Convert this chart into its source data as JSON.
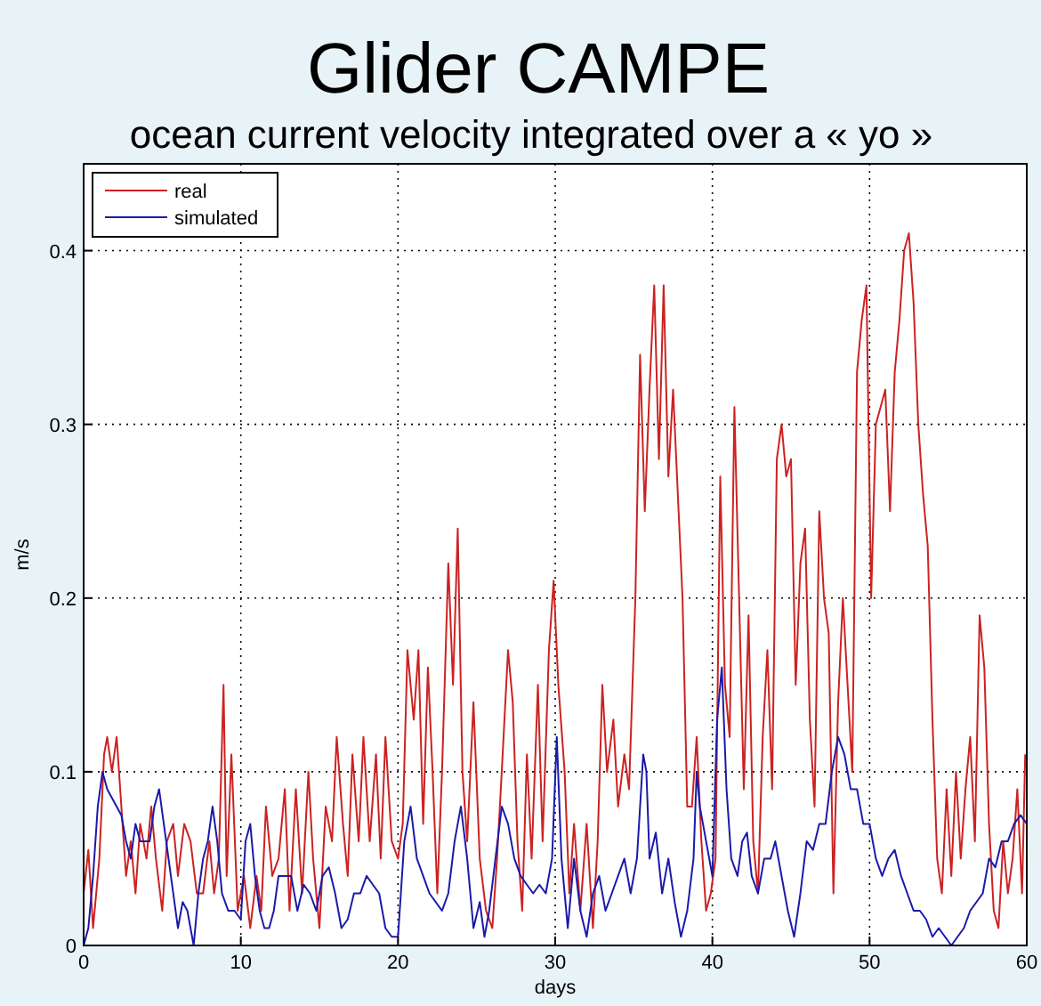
{
  "chart_data": {
    "type": "line",
    "title": "Glider CAMPE",
    "subtitle": "ocean current velocity integrated over a « yo »",
    "xlabel": "days",
    "ylabel": "m/s",
    "xlim": [
      0,
      60
    ],
    "xticks": [
      0,
      10,
      20,
      30,
      40,
      50,
      60
    ],
    "ylim": [
      0,
      0.45
    ],
    "yticks": [
      0,
      0.1,
      0.2,
      0.3,
      0.4
    ],
    "grid": true,
    "legend": "top left",
    "line_style": "solid",
    "marker": "none",
    "series": [
      {
        "name": "real",
        "color": "#cc2222",
        "x": [
          0,
          0.3,
          0.6,
          1,
          1.3,
          1.5,
          1.8,
          2.1,
          2.4,
          2.7,
          3,
          3.3,
          3.6,
          4,
          4.3,
          4.6,
          5,
          5.3,
          5.7,
          6,
          6.4,
          6.8,
          7.2,
          7.6,
          8,
          8.3,
          8.6,
          8.9,
          9.1,
          9.4,
          9.8,
          10.2,
          10.6,
          11,
          11.3,
          11.6,
          12,
          12.4,
          12.8,
          13.1,
          13.5,
          13.9,
          14.3,
          14.6,
          15,
          15.4,
          15.8,
          16.1,
          16.5,
          16.8,
          17.1,
          17.5,
          17.8,
          18.2,
          18.6,
          18.9,
          19.2,
          19.6,
          20,
          20.3,
          20.6,
          21,
          21.3,
          21.6,
          21.9,
          22.2,
          22.5,
          22.8,
          23.2,
          23.5,
          23.8,
          24.1,
          24.4,
          24.8,
          25.2,
          25.6,
          26,
          26.3,
          26.6,
          27,
          27.3,
          27.6,
          27.9,
          28.2,
          28.5,
          28.9,
          29.2,
          29.6,
          29.9,
          30.2,
          30.6,
          30.9,
          31.2,
          31.6,
          32,
          32.4,
          32.7,
          33,
          33.3,
          33.7,
          34,
          34.4,
          34.7,
          35.1,
          35.4,
          35.7,
          36,
          36.3,
          36.6,
          36.9,
          37.2,
          37.5,
          37.8,
          38.1,
          38.4,
          38.7,
          39,
          39.3,
          39.6,
          39.9,
          40.2,
          40.5,
          40.8,
          41.1,
          41.4,
          41.7,
          42,
          42.3,
          42.6,
          42.9,
          43.2,
          43.5,
          43.8,
          44.1,
          44.4,
          44.7,
          45,
          45.3,
          45.6,
          45.9,
          46.2,
          46.5,
          46.8,
          47.1,
          47.4,
          47.7,
          48,
          48.3,
          48.6,
          48.9,
          49.2,
          49.5,
          49.8,
          50.1,
          50.4,
          50.7,
          51,
          51.3,
          51.6,
          51.9,
          52.2,
          52.5,
          52.8,
          53.1,
          53.4,
          53.7,
          54,
          54.3,
          54.6,
          54.9,
          55.2,
          55.5,
          55.8,
          56.1,
          56.4,
          56.7,
          57,
          57.3,
          57.6,
          57.9,
          58.2,
          58.5,
          58.8,
          59.1,
          59.4,
          59.7,
          59.9
        ],
        "values": [
          0.03,
          0.055,
          0.01,
          0.05,
          0.11,
          0.12,
          0.1,
          0.12,
          0.08,
          0.04,
          0.06,
          0.03,
          0.07,
          0.05,
          0.08,
          0.05,
          0.02,
          0.06,
          0.07,
          0.04,
          0.07,
          0.06,
          0.03,
          0.03,
          0.06,
          0.03,
          0.05,
          0.15,
          0.04,
          0.11,
          0.02,
          0.04,
          0.01,
          0.04,
          0.02,
          0.08,
          0.04,
          0.05,
          0.09,
          0.02,
          0.09,
          0.03,
          0.1,
          0.05,
          0.01,
          0.08,
          0.06,
          0.12,
          0.07,
          0.04,
          0.11,
          0.06,
          0.12,
          0.06,
          0.11,
          0.05,
          0.12,
          0.06,
          0.05,
          0.07,
          0.17,
          0.13,
          0.17,
          0.07,
          0.16,
          0.1,
          0.03,
          0.1,
          0.22,
          0.15,
          0.24,
          0.1,
          0.06,
          0.14,
          0.05,
          0.02,
          0.01,
          0.05,
          0.1,
          0.17,
          0.14,
          0.06,
          0.02,
          0.11,
          0.05,
          0.15,
          0.06,
          0.17,
          0.21,
          0.15,
          0.1,
          0.03,
          0.07,
          0.02,
          0.07,
          0.01,
          0.06,
          0.15,
          0.1,
          0.13,
          0.08,
          0.11,
          0.09,
          0.2,
          0.34,
          0.25,
          0.32,
          0.38,
          0.28,
          0.38,
          0.27,
          0.32,
          0.26,
          0.2,
          0.08,
          0.08,
          0.12,
          0.06,
          0.02,
          0.03,
          0.05,
          0.27,
          0.15,
          0.12,
          0.31,
          0.2,
          0.09,
          0.19,
          0.06,
          0.03,
          0.12,
          0.17,
          0.09,
          0.28,
          0.3,
          0.27,
          0.28,
          0.15,
          0.22,
          0.24,
          0.13,
          0.08,
          0.25,
          0.2,
          0.18,
          0.03,
          0.14,
          0.2,
          0.15,
          0.1,
          0.33,
          0.36,
          0.38,
          0.2,
          0.3,
          0.31,
          0.32,
          0.25,
          0.33,
          0.36,
          0.4,
          0.41,
          0.37,
          0.3,
          0.26,
          0.23,
          0.13,
          0.05,
          0.03,
          0.09,
          0.04,
          0.1,
          0.05,
          0.09,
          0.12,
          0.06,
          0.19,
          0.16,
          0.07,
          0.02,
          0.01,
          0.06,
          0.03,
          0.05,
          0.09,
          0.03,
          0.11
        ]
      },
      {
        "name": "simulated",
        "color": "#1a1aaa",
        "x": [
          0,
          0.3,
          0.6,
          0.9,
          1.2,
          1.5,
          1.8,
          2.1,
          2.4,
          2.7,
          3,
          3.3,
          3.6,
          3.9,
          4.2,
          4.5,
          4.8,
          5.1,
          5.4,
          5.7,
          6,
          6.3,
          6.6,
          7,
          7.3,
          7.6,
          7.9,
          8.2,
          8.5,
          8.8,
          9.2,
          9.6,
          10,
          10.3,
          10.6,
          10.9,
          11.2,
          11.5,
          11.8,
          12.1,
          12.4,
          12.8,
          13.2,
          13.6,
          14,
          14.4,
          14.8,
          15.2,
          15.6,
          16,
          16.4,
          16.8,
          17.2,
          17.6,
          18,
          18.4,
          18.8,
          19.2,
          19.6,
          20,
          20.4,
          20.8,
          21.2,
          21.6,
          22,
          22.4,
          22.8,
          23.2,
          23.6,
          24,
          24.4,
          24.8,
          25.2,
          25.5,
          25.8,
          26.2,
          26.6,
          27,
          27.4,
          27.8,
          28.2,
          28.6,
          29,
          29.4,
          29.8,
          30.1,
          30.4,
          30.8,
          31.2,
          31.6,
          32,
          32.4,
          32.8,
          33.2,
          33.6,
          34,
          34.4,
          34.8,
          35.2,
          35.6,
          35.8,
          36,
          36.4,
          36.8,
          37.2,
          37.6,
          38,
          38.4,
          38.8,
          39,
          39.2,
          39.6,
          40,
          40.3,
          40.6,
          40.9,
          41.2,
          41.6,
          41.9,
          42.2,
          42.5,
          42.9,
          43.3,
          43.7,
          44,
          44.4,
          44.8,
          45.2,
          45.6,
          46,
          46.4,
          46.8,
          47.2,
          47.6,
          48,
          48.4,
          48.8,
          49.2,
          49.6,
          50,
          50.4,
          50.8,
          51.2,
          51.6,
          52,
          52.4,
          52.8,
          53.2,
          53.6,
          54,
          54.4,
          54.8,
          55.2,
          55.6,
          56,
          56.4,
          56.8,
          57.2,
          57.6,
          58,
          58.4,
          58.8,
          59.2,
          59.6,
          60
        ],
        "values": [
          0,
          0.01,
          0.04,
          0.08,
          0.1,
          0.09,
          0.085,
          0.08,
          0.075,
          0.06,
          0.05,
          0.07,
          0.06,
          0.06,
          0.06,
          0.08,
          0.09,
          0.07,
          0.05,
          0.03,
          0.01,
          0.025,
          0.02,
          0,
          0.03,
          0.05,
          0.06,
          0.08,
          0.06,
          0.03,
          0.02,
          0.02,
          0.015,
          0.06,
          0.07,
          0.04,
          0.02,
          0.01,
          0.01,
          0.02,
          0.04,
          0.04,
          0.04,
          0.02,
          0.035,
          0.03,
          0.02,
          0.04,
          0.045,
          0.03,
          0.01,
          0.015,
          0.03,
          0.03,
          0.04,
          0.035,
          0.03,
          0.01,
          0.005,
          0.005,
          0.06,
          0.08,
          0.05,
          0.04,
          0.03,
          0.025,
          0.02,
          0.03,
          0.06,
          0.08,
          0.05,
          0.01,
          0.025,
          0.005,
          0.02,
          0.05,
          0.08,
          0.07,
          0.05,
          0.04,
          0.035,
          0.03,
          0.035,
          0.03,
          0.05,
          0.12,
          0.05,
          0.01,
          0.05,
          0.02,
          0.005,
          0.03,
          0.04,
          0.02,
          0.03,
          0.04,
          0.05,
          0.03,
          0.05,
          0.11,
          0.1,
          0.05,
          0.065,
          0.03,
          0.05,
          0.025,
          0.005,
          0.02,
          0.05,
          0.1,
          0.08,
          0.06,
          0.04,
          0.13,
          0.16,
          0.09,
          0.05,
          0.04,
          0.06,
          0.065,
          0.04,
          0.03,
          0.05,
          0.05,
          0.06,
          0.04,
          0.02,
          0.005,
          0.03,
          0.06,
          0.055,
          0.07,
          0.07,
          0.1,
          0.12,
          0.11,
          0.09,
          0.09,
          0.07,
          0.07,
          0.05,
          0.04,
          0.05,
          0.055,
          0.04,
          0.03,
          0.02,
          0.02,
          0.015,
          0.005,
          0.01,
          0.005,
          0,
          0.005,
          0.01,
          0.02,
          0.025,
          0.03,
          0.05,
          0.045,
          0.06,
          0.06,
          0.07,
          0.075,
          0.07
        ]
      }
    ]
  }
}
